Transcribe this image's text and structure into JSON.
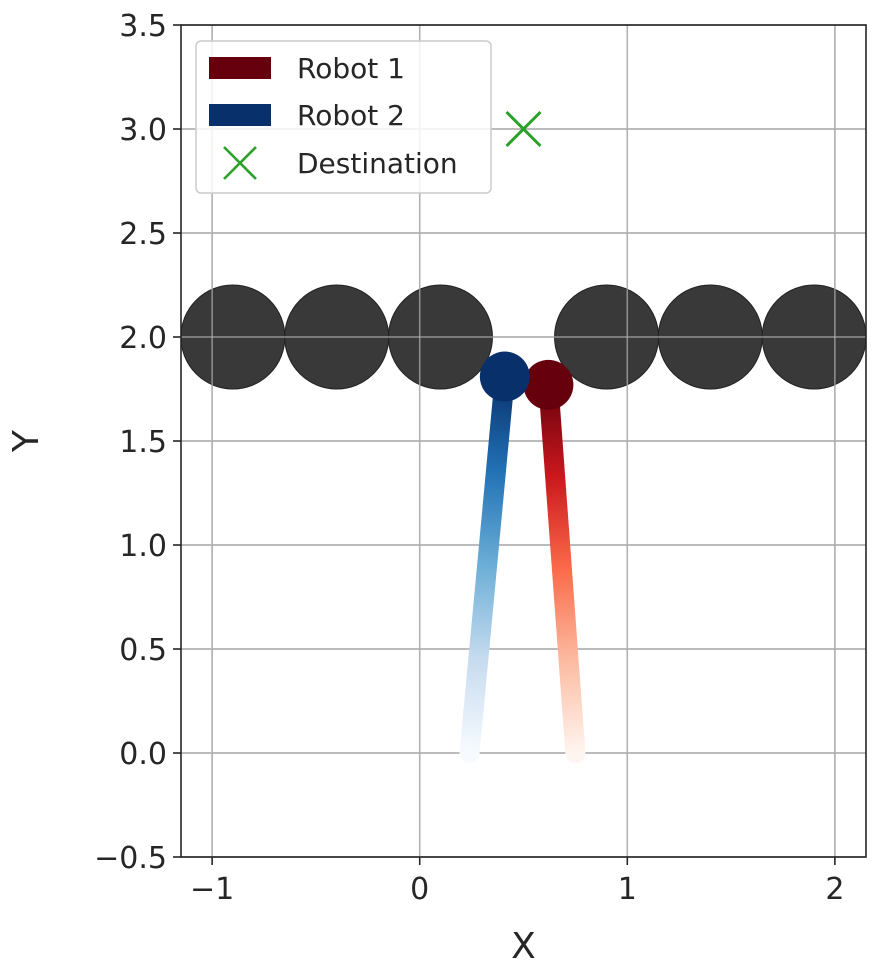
{
  "chart_data": {
    "type": "scatter",
    "xlabel": "X",
    "ylabel": "Y",
    "xlim": [
      -1.15,
      2.15
    ],
    "ylim": [
      -0.5,
      3.5
    ],
    "grid": true,
    "x_ticks": [
      -1,
      0,
      1,
      2
    ],
    "x_tick_labels": [
      "−1",
      "0",
      "1",
      "2"
    ],
    "y_ticks": [
      -0.5,
      0.0,
      0.5,
      1.0,
      1.5,
      2.0,
      2.5,
      3.0,
      3.5
    ],
    "y_tick_labels": [
      "−0.5",
      "0.0",
      "0.5",
      "1.0",
      "1.5",
      "2.0",
      "2.5",
      "3.0",
      "3.5"
    ],
    "legend": {
      "placement": "top-left",
      "entries": [
        {
          "label": "Robot 1",
          "marker": "patch",
          "color": "#67000d"
        },
        {
          "label": "Robot 2",
          "marker": "patch",
          "color": "#08306b"
        },
        {
          "label": "Destination",
          "marker": "x",
          "color": "#2ca02c"
        }
      ]
    },
    "obstacles": {
      "color": "#333333",
      "radius": 0.25,
      "centers": [
        {
          "x": -0.9,
          "y": 2.0
        },
        {
          "x": -0.4,
          "y": 2.0
        },
        {
          "x": 0.1,
          "y": 2.0
        },
        {
          "x": 0.9,
          "y": 2.0
        },
        {
          "x": 1.4,
          "y": 2.0
        },
        {
          "x": 1.9,
          "y": 2.0
        }
      ]
    },
    "robots": [
      {
        "name": "Robot 1",
        "color": "#67000d",
        "colormap": [
          "#fff5f0",
          "#fcbba1",
          "#fb6a4a",
          "#cb181d",
          "#67000d"
        ],
        "radius": 0.12,
        "path": [
          {
            "x": 0.75,
            "y": 0.0
          },
          {
            "x": 0.62,
            "y": 1.77
          }
        ]
      },
      {
        "name": "Robot 2",
        "color": "#08306b",
        "colormap": [
          "#f7fbff",
          "#c6dbef",
          "#6baed6",
          "#2171b5",
          "#08306b"
        ],
        "radius": 0.12,
        "path": [
          {
            "x": 0.24,
            "y": 0.0
          },
          {
            "x": 0.41,
            "y": 1.81
          }
        ]
      }
    ],
    "destination": {
      "name": "Destination",
      "x": 0.5,
      "y": 3.0,
      "color": "#2ca02c"
    }
  }
}
